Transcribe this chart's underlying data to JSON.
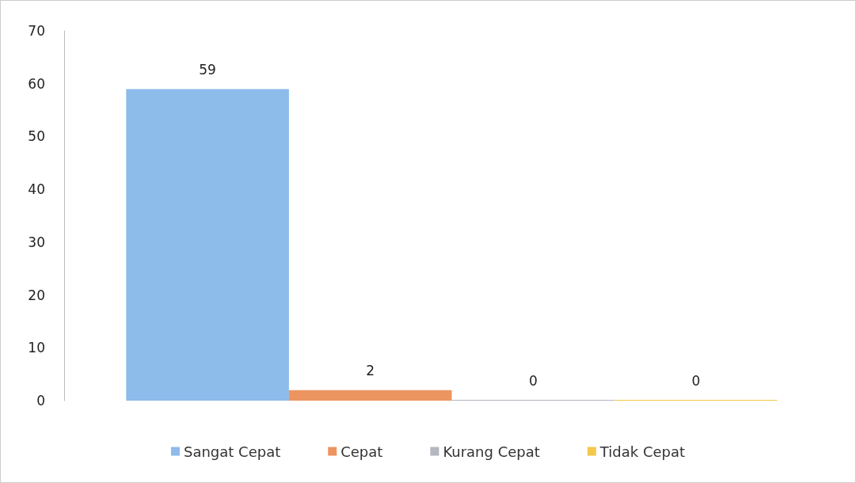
{
  "chart_data": {
    "type": "bar",
    "categories": [
      null
    ],
    "series": [
      {
        "name": "Sangat Cepat",
        "color": "#8dbbea",
        "values": [
          59
        ]
      },
      {
        "name": "Cepat",
        "color": "#ec9560",
        "values": [
          2
        ]
      },
      {
        "name": "Kurang Cepat",
        "color": "#b4b6c0",
        "values": [
          0
        ]
      },
      {
        "name": "Tidak Cepat",
        "color": "#f4c84a",
        "values": [
          0
        ]
      }
    ],
    "ylim": [
      0,
      70
    ],
    "yticks": [
      0,
      10,
      20,
      30,
      40,
      50,
      60,
      70
    ],
    "grid": false,
    "legend": "bottom",
    "data_labels": true
  }
}
